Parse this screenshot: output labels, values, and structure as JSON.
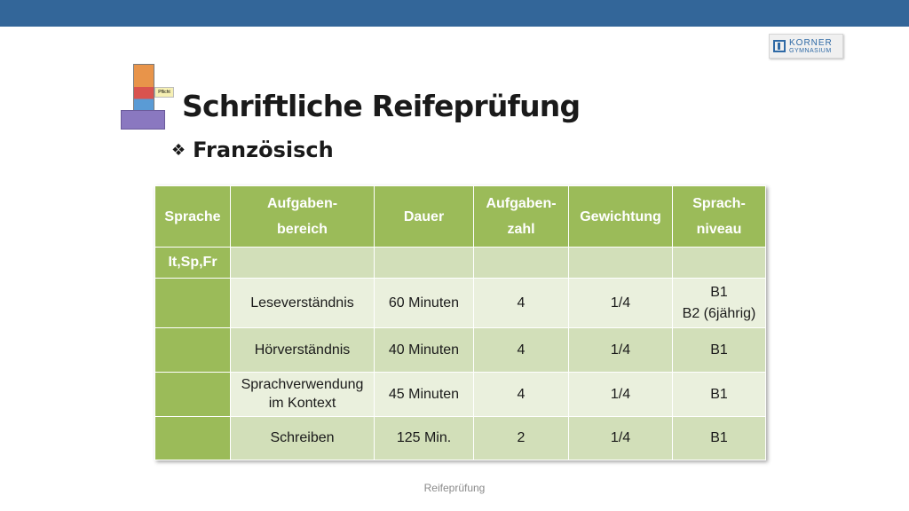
{
  "slide": {
    "title": "Schriftliche Reifeprüfung",
    "subtitle": "Französisch",
    "bullet_icon": "diamond-bullet-icon",
    "footer": "Reifeprüfung",
    "accent_color": "#336699",
    "header_color": "#9bbb59"
  },
  "logo": {
    "line1": "KORNER",
    "line2": "GYMNASIUM"
  },
  "pyramid": {
    "label": "Pflicht"
  },
  "table": {
    "headers": [
      {
        "l1": "Sprache",
        "l2": ""
      },
      {
        "l1": "Aufgaben-",
        "l2": "bereich"
      },
      {
        "l1": "Dauer",
        "l2": ""
      },
      {
        "l1": "Aufgaben-",
        "l2": "zahl"
      },
      {
        "l1": "Gewichtung",
        "l2": ""
      },
      {
        "l1": "Sprach-",
        "l2": "niveau"
      }
    ],
    "language": "It,Sp,Fr",
    "rows": [
      {
        "bereich": [
          "Leseverständnis"
        ],
        "dauer": "60 Minuten",
        "zahl": "4",
        "gewichtung": "1/4",
        "niveau": [
          "B1",
          "B2 (6jährig)"
        ]
      },
      {
        "bereich": [
          "Hörverständnis"
        ],
        "dauer": "40 Minuten",
        "zahl": "4",
        "gewichtung": "1/4",
        "niveau": [
          "B1"
        ]
      },
      {
        "bereich": [
          "Sprachverwendung",
          "im Kontext"
        ],
        "dauer": "45 Minuten",
        "zahl": "4",
        "gewichtung": "1/4",
        "niveau": [
          "B1"
        ]
      },
      {
        "bereich": [
          "Schreiben"
        ],
        "dauer": "125 Min.",
        "zahl": "2",
        "gewichtung": "1/4",
        "niveau": [
          "B1"
        ]
      }
    ]
  }
}
